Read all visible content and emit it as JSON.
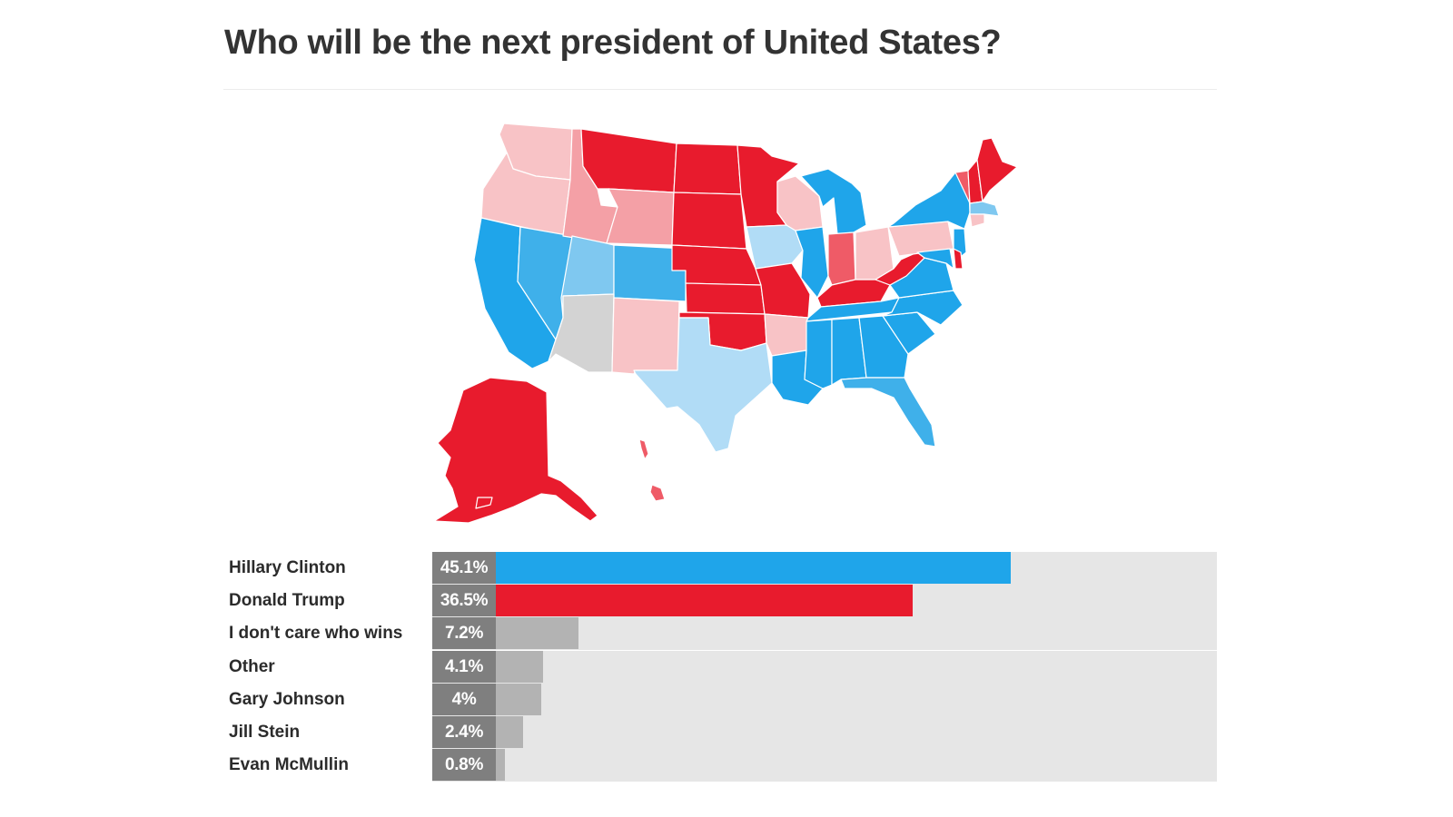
{
  "title": "Who will be the next president of United States?",
  "colors": {
    "clinton_strong": "#1fa5ea",
    "clinton_lean": "#3fb0ea",
    "clinton_likely": "#7fc8f0",
    "clinton_tilt": "#b1dcf6",
    "trump_strong": "#e81b2d",
    "trump_lean": "#ef5b67",
    "trump_likely": "#f4a0a6",
    "trump_tilt": "#f8c3c6",
    "tossup": "#d3d3d3",
    "other_bar": "#b3b3b3",
    "pct_box": "#7f7f7f",
    "track": "#e6e6e6"
  },
  "chart_data": {
    "type": "bar",
    "orientation": "horizontal",
    "categories": [
      "Hillary Clinton",
      "Donald Trump",
      "I don't care who wins",
      "Other",
      "Gary Johnson",
      "Jill Stein",
      "Evan McMullin"
    ],
    "values": [
      45.1,
      36.5,
      7.2,
      4.1,
      4,
      2.4,
      0.8
    ],
    "labels": [
      "45.1%",
      "36.5%",
      "7.2%",
      "4.1%",
      "4%",
      "2.4%",
      "0.8%"
    ],
    "bar_colors": [
      "#1fa5ea",
      "#e81b2d",
      "#b3b3b3",
      "#b3b3b3",
      "#b3b3b3",
      "#b3b3b3",
      "#b3b3b3"
    ],
    "xlim": [
      0,
      60
    ],
    "grid": false,
    "legend": "none"
  },
  "map": {
    "type": "choropleth",
    "region": "United States"
  }
}
